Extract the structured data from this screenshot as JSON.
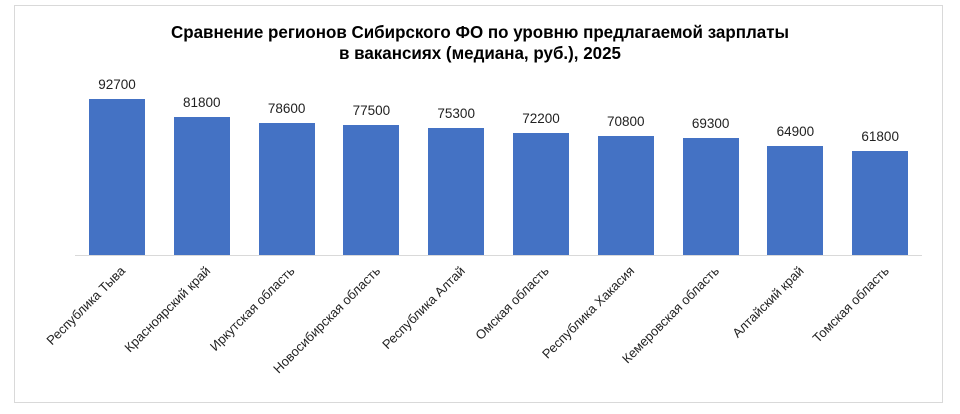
{
  "title_lines": [
    "Сравнение регионов Сибирского ФО по уровню предлагаемой зарплаты",
    "в вакансиях  (медиана, руб.), 2025"
  ],
  "colors": {
    "bar": "#4472c4",
    "axis": "#d9d9d9",
    "frame": "#d9d9d9"
  },
  "chart_data": {
    "type": "bar",
    "title": "Сравнение регионов Сибирского ФО по уровню предлагаемой зарплаты в вакансиях (медиана, руб.), 2025",
    "categories": [
      "Республика Тыва",
      "Красноярский край",
      "Иркутская область",
      "Новосибирская  область",
      "Республика Алтай",
      "Омская область",
      "Республика Хакасия",
      "Кемеровская область",
      "Алтайский край",
      "Томская область"
    ],
    "values": [
      92700,
      81800,
      78600,
      77500,
      75300,
      72200,
      70800,
      69300,
      64900,
      61800
    ],
    "value_labels": [
      "92700",
      "81800",
      "78600",
      "77500",
      "75300",
      "72200",
      "70800",
      "69300",
      "64900",
      "61800"
    ],
    "xlabel": "",
    "ylabel": "",
    "ylim": [
      0,
      100000
    ],
    "grid": false,
    "legend": "none",
    "data_labels": true,
    "x_tick_rotation": -45
  }
}
